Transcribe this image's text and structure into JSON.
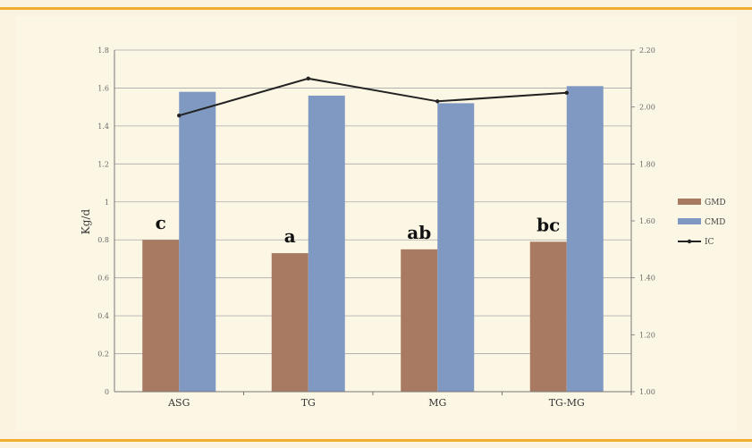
{
  "chart_data": {
    "type": "bar",
    "ylabel": "Kg/d",
    "categories": [
      "ASG",
      "TG",
      "MG",
      "TG-MG"
    ],
    "left_axis": {
      "min": 0,
      "max": 1.8,
      "step": 0.2,
      "tick_labels": [
        "0",
        "0.2",
        "0.4",
        "0.6",
        "0.8",
        "1",
        "1.2",
        "1.4",
        "1.6",
        "1.8"
      ]
    },
    "right_axis": {
      "min": 1,
      "max": 2.2,
      "step": 0.2,
      "tick_labels": [
        "1.00",
        "1.20",
        "1.40",
        "1.60",
        "1.80",
        "2.00",
        "2.20"
      ]
    },
    "series": [
      {
        "name": "GMD",
        "type": "bar",
        "axis": "left",
        "color": "#a87a62",
        "values": [
          0.8,
          0.73,
          0.75,
          0.79
        ]
      },
      {
        "name": "CMD",
        "type": "bar",
        "axis": "left",
        "color": "#7f99c2",
        "values": [
          1.58,
          1.56,
          1.52,
          1.61
        ]
      },
      {
        "name": "IC",
        "type": "line",
        "axis": "right",
        "color": "#222222",
        "values": [
          1.97,
          2.1,
          2.02,
          2.05
        ]
      }
    ],
    "annotations": [
      "c",
      "a",
      "ab",
      "bc"
    ],
    "legend": "right",
    "grid": true
  }
}
